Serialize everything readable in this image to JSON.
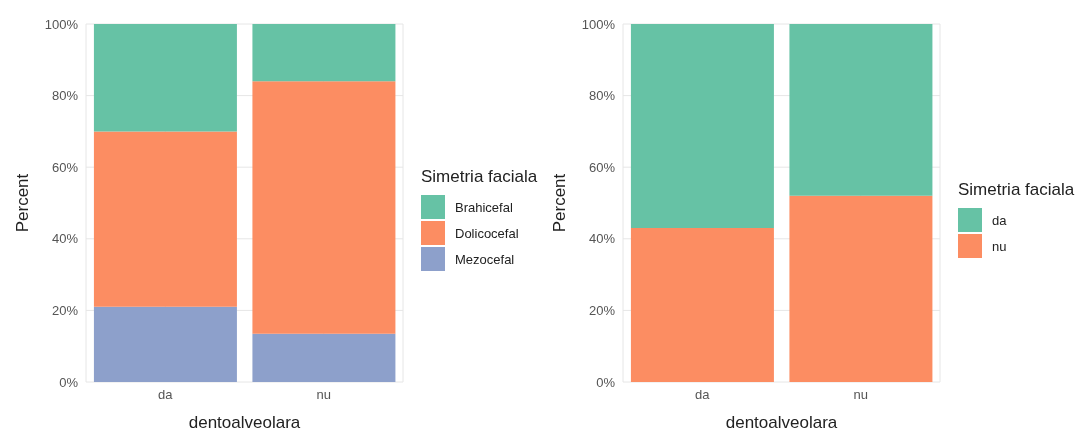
{
  "chart_data": [
    {
      "type": "bar",
      "stacked": true,
      "xlabel": "dentoalveolara",
      "ylabel": "Percent",
      "legend_title": "Simetria faciala",
      "categories": [
        "da",
        "nu"
      ],
      "series": [
        {
          "name": "Mezocefal",
          "color": "#8da0cb",
          "values": [
            21,
            13.5
          ]
        },
        {
          "name": "Dolicocefal",
          "color": "#fc8d62",
          "values": [
            49,
            70.5
          ]
        },
        {
          "name": "Brahicefal",
          "color": "#66c2a5",
          "values": [
            30,
            16
          ]
        }
      ],
      "ylim": [
        0,
        100
      ],
      "yticks": [
        {
          "value": 0,
          "label": "0%"
        },
        {
          "value": 20,
          "label": "20%"
        },
        {
          "value": 40,
          "label": "40%"
        },
        {
          "value": 60,
          "label": "60%"
        },
        {
          "value": 80,
          "label": "80%"
        },
        {
          "value": 100,
          "label": "100%"
        }
      ],
      "grid": true,
      "legend": "right"
    },
    {
      "type": "bar",
      "stacked": true,
      "xlabel": "dentoalveolara",
      "ylabel": "Percent",
      "legend_title": "Simetria faciala",
      "categories": [
        "da",
        "nu"
      ],
      "series": [
        {
          "name": "nu",
          "color": "#fc8d62",
          "values": [
            43,
            52
          ]
        },
        {
          "name": "da",
          "color": "#66c2a5",
          "values": [
            57,
            48
          ]
        }
      ],
      "ylim": [
        0,
        100
      ],
      "yticks": [
        {
          "value": 0,
          "label": "0%"
        },
        {
          "value": 20,
          "label": "20%"
        },
        {
          "value": 40,
          "label": "40%"
        },
        {
          "value": 60,
          "label": "60%"
        },
        {
          "value": 80,
          "label": "80%"
        },
        {
          "value": 100,
          "label": "100%"
        }
      ],
      "grid": true,
      "legend": "right"
    }
  ]
}
